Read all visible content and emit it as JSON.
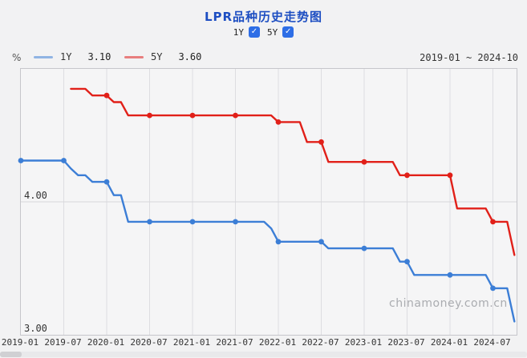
{
  "header": {
    "title": "LPR品种历史走势图"
  },
  "icons": {
    "check": "✓"
  },
  "controls": {
    "series_toggles": [
      {
        "label": "1Y",
        "checked": true
      },
      {
        "label": "5Y",
        "checked": true
      }
    ]
  },
  "legend": {
    "unit": "%",
    "items": [
      {
        "label": "1Y",
        "value": "3.10",
        "swatch_color": "#90b4e3"
      },
      {
        "label": "5Y",
        "value": "3.60",
        "swatch_color": "#e87e7e"
      }
    ],
    "date_range": "2019-01 ~ 2024-10"
  },
  "watermark": "chinamoney.com.cn",
  "chart_data": {
    "type": "line",
    "title": "LPR品种历史走势图",
    "ylabel": "%",
    "ylim": [
      3.0,
      5.0
    ],
    "grid": true,
    "yticks": [
      {
        "label": "4.00",
        "value": 4.0
      },
      {
        "label": "3.00",
        "value": 3.0
      }
    ],
    "x_tick_labels": [
      "2019-01",
      "2019-07",
      "2020-01",
      "2020-07",
      "2021-01",
      "2021-07",
      "2022-01",
      "2022-07",
      "2023-01",
      "2023-07",
      "2024-01",
      "2024-07"
    ],
    "x_months": [
      "2019-01",
      "2019-02",
      "2019-03",
      "2019-04",
      "2019-05",
      "2019-06",
      "2019-07",
      "2019-08",
      "2019-09",
      "2019-10",
      "2019-11",
      "2019-12",
      "2020-01",
      "2020-02",
      "2020-03",
      "2020-04",
      "2020-05",
      "2020-06",
      "2020-07",
      "2020-08",
      "2020-09",
      "2020-10",
      "2020-11",
      "2020-12",
      "2021-01",
      "2021-02",
      "2021-03",
      "2021-04",
      "2021-05",
      "2021-06",
      "2021-07",
      "2021-08",
      "2021-09",
      "2021-10",
      "2021-11",
      "2021-12",
      "2022-01",
      "2022-02",
      "2022-03",
      "2022-04",
      "2022-05",
      "2022-06",
      "2022-07",
      "2022-08",
      "2022-09",
      "2022-10",
      "2022-11",
      "2022-12",
      "2023-01",
      "2023-02",
      "2023-03",
      "2023-04",
      "2023-05",
      "2023-06",
      "2023-07",
      "2023-08",
      "2023-09",
      "2023-10",
      "2023-11",
      "2023-12",
      "2024-01",
      "2024-02",
      "2024-03",
      "2024-04",
      "2024-05",
      "2024-06",
      "2024-07",
      "2024-08",
      "2024-09",
      "2024-10"
    ],
    "marker_interval_months": 6,
    "series": [
      {
        "name": "1Y",
        "color": "#3c7ed6",
        "values": [
          4.31,
          4.31,
          4.31,
          4.31,
          4.31,
          4.31,
          4.31,
          4.25,
          4.2,
          4.2,
          4.15,
          4.15,
          4.15,
          4.05,
          4.05,
          3.85,
          3.85,
          3.85,
          3.85,
          3.85,
          3.85,
          3.85,
          3.85,
          3.85,
          3.85,
          3.85,
          3.85,
          3.85,
          3.85,
          3.85,
          3.85,
          3.85,
          3.85,
          3.85,
          3.85,
          3.8,
          3.7,
          3.7,
          3.7,
          3.7,
          3.7,
          3.7,
          3.7,
          3.65,
          3.65,
          3.65,
          3.65,
          3.65,
          3.65,
          3.65,
          3.65,
          3.65,
          3.65,
          3.55,
          3.55,
          3.45,
          3.45,
          3.45,
          3.45,
          3.45,
          3.45,
          3.45,
          3.45,
          3.45,
          3.45,
          3.45,
          3.35,
          3.35,
          3.35,
          3.1
        ]
      },
      {
        "name": "5Y",
        "color": "#e12019",
        "values": [
          null,
          null,
          null,
          null,
          null,
          null,
          null,
          4.85,
          4.85,
          4.85,
          4.8,
          4.8,
          4.8,
          4.75,
          4.75,
          4.65,
          4.65,
          4.65,
          4.65,
          4.65,
          4.65,
          4.65,
          4.65,
          4.65,
          4.65,
          4.65,
          4.65,
          4.65,
          4.65,
          4.65,
          4.65,
          4.65,
          4.65,
          4.65,
          4.65,
          4.65,
          4.6,
          4.6,
          4.6,
          4.6,
          4.45,
          4.45,
          4.45,
          4.3,
          4.3,
          4.3,
          4.3,
          4.3,
          4.3,
          4.3,
          4.3,
          4.3,
          4.3,
          4.2,
          4.2,
          4.2,
          4.2,
          4.2,
          4.2,
          4.2,
          4.2,
          3.95,
          3.95,
          3.95,
          3.95,
          3.95,
          3.85,
          3.85,
          3.85,
          3.6
        ]
      }
    ],
    "legend_position": "top-left",
    "gridline_color": "#dddde1",
    "plot_bg": "#f5f5f6"
  }
}
